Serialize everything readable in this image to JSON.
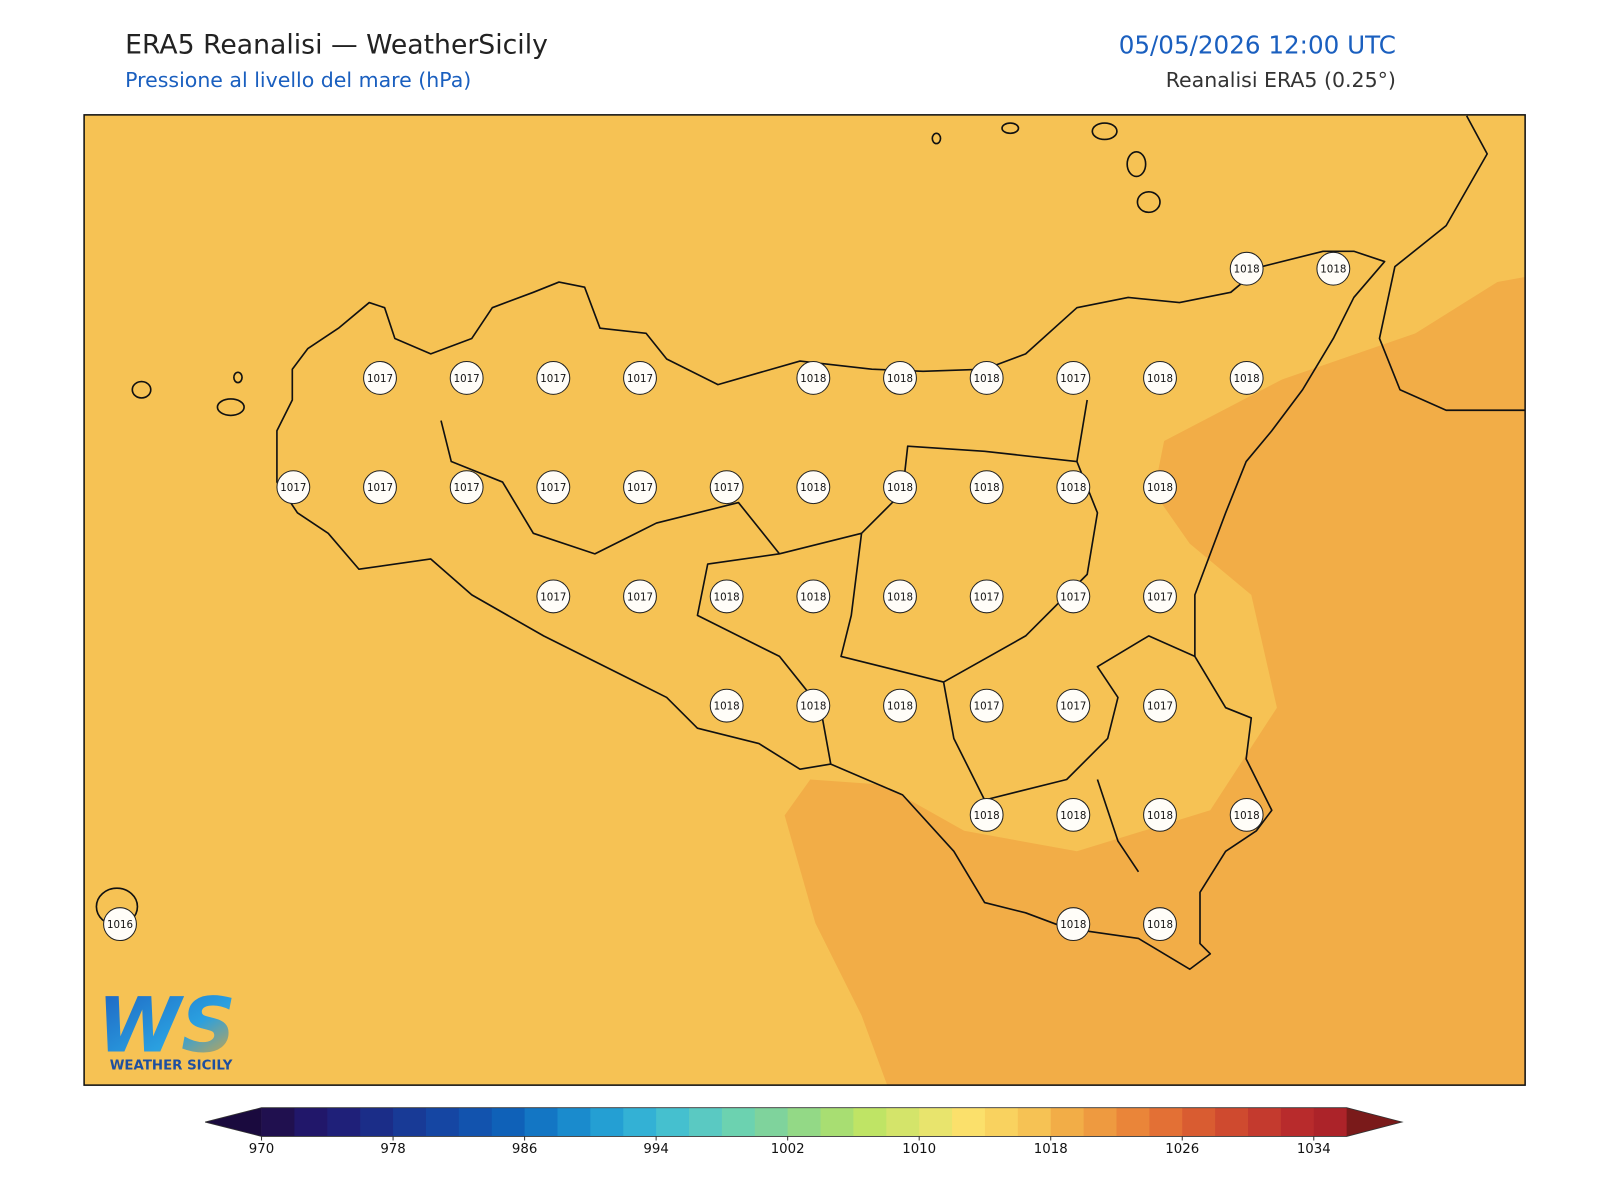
{
  "header": {
    "title": "ERA5 Reanalisi — WeatherSicily",
    "subtitle": "Pressione al livello del mare (hPa)",
    "timestamp": "05/05/2026 12:00 UTC",
    "source": "Reanalisi ERA5 (0.25°)"
  },
  "map": {
    "stations": {
      "rows": [
        [
          null,
          null,
          null,
          null,
          null,
          null,
          null,
          null,
          null,
          null,
          null,
          null,
          null,
          1018,
          1018
        ],
        [
          null,
          null,
          null,
          1017,
          1017,
          1017,
          1017,
          null,
          1018,
          1018,
          1018,
          1017,
          1018,
          1018,
          null
        ],
        [
          null,
          null,
          1017,
          1017,
          1017,
          1017,
          1017,
          1017,
          1018,
          1018,
          1018,
          1018,
          1018,
          null,
          null
        ],
        [
          null,
          null,
          null,
          null,
          null,
          1017,
          1017,
          1018,
          1018,
          1018,
          1017,
          1017,
          1017,
          null,
          null
        ],
        [
          null,
          null,
          null,
          null,
          null,
          null,
          null,
          1018,
          1018,
          1018,
          1017,
          1017,
          1017,
          null,
          null
        ],
        [
          null,
          null,
          null,
          null,
          null,
          null,
          null,
          null,
          null,
          null,
          1018,
          1018,
          1018,
          1018,
          null
        ],
        [
          1016,
          null,
          null,
          null,
          null,
          null,
          null,
          null,
          null,
          null,
          null,
          1018,
          1018,
          null,
          null
        ]
      ]
    }
  },
  "colorbar": {
    "lim": [
      970,
      1036
    ],
    "ticks": [
      970,
      978,
      986,
      994,
      1002,
      1010,
      1018,
      1026,
      1034
    ],
    "colors": [
      "#20104f",
      "#21176a",
      "#1f2079",
      "#1b2d88",
      "#183a96",
      "#1546a3",
      "#1253ae",
      "#0f61b8",
      "#1376c4",
      "#1a8bcd",
      "#249fd3",
      "#33b1d5",
      "#45c0cf",
      "#5ac9c2",
      "#6cd2b0",
      "#7fd39c",
      "#93d986",
      "#a8de72",
      "#bfe465",
      "#d4e46a",
      "#e8e46d",
      "#fbe06b",
      "#f9d25f",
      "#f6c254",
      "#f2ad47",
      "#ee9a40",
      "#ea8539",
      "#e37035",
      "#d95c31",
      "#cf4a2f",
      "#c43a2e",
      "#b82b2c",
      "#ac2329"
    ],
    "extend_colors": [
      "#1a0a3e",
      "#7a1a1a"
    ]
  },
  "logo": {
    "text": "WS",
    "caption": "WEATHER SICILY"
  }
}
